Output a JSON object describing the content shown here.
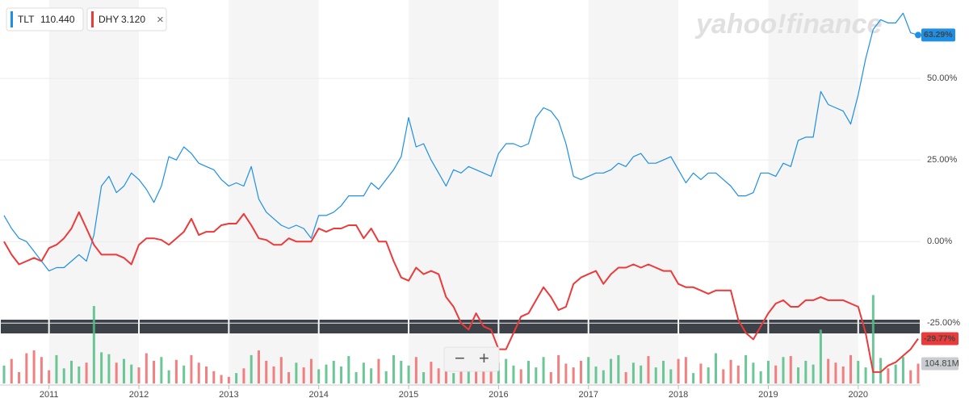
{
  "watermark": "yahoo!finance",
  "zoom": {
    "out": "−",
    "in": "+"
  },
  "legend_close": "×",
  "chart_data": {
    "type": "line",
    "categories": [
      null,
      null,
      null,
      null,
      null,
      null,
      "2011",
      null,
      null,
      null,
      null,
      null,
      null,
      null,
      null,
      null,
      null,
      null,
      "2012",
      null,
      null,
      null,
      null,
      null,
      null,
      null,
      null,
      null,
      null,
      null,
      "2013",
      null,
      null,
      null,
      null,
      null,
      null,
      null,
      null,
      null,
      null,
      null,
      "2014",
      null,
      null,
      null,
      null,
      null,
      null,
      null,
      null,
      null,
      null,
      null,
      "2015",
      null,
      null,
      null,
      null,
      null,
      null,
      null,
      null,
      null,
      null,
      null,
      "2016",
      null,
      null,
      null,
      null,
      null,
      null,
      null,
      null,
      null,
      null,
      null,
      "2017",
      null,
      null,
      null,
      null,
      null,
      null,
      null,
      null,
      null,
      null,
      null,
      "2018",
      null,
      null,
      null,
      null,
      null,
      null,
      null,
      null,
      null,
      null,
      null,
      "2019",
      null,
      null,
      null,
      null,
      null,
      null,
      null,
      null,
      null,
      null,
      null,
      "2020",
      null,
      null,
      null,
      null,
      null,
      null,
      null,
      null
    ],
    "ylim": [
      -43.5,
      72.8
    ],
    "yticks": [
      {
        "value": 50,
        "label": "50.00%"
      },
      {
        "value": 25,
        "label": "25.00%"
      },
      {
        "value": 0,
        "label": "0.00%"
      },
      {
        "value": -25,
        "label": "-25.00%"
      }
    ],
    "grid": true,
    "series": [
      {
        "name": "TLT",
        "quote": "110.440",
        "color": "#1e8fe6",
        "end_label": "63.29%",
        "values": [
          8,
          4,
          1,
          0,
          -3,
          -6,
          -9,
          -8,
          -8,
          -6,
          -4,
          -6,
          2,
          17,
          20,
          15,
          17,
          21,
          19,
          16,
          12,
          17,
          26,
          25,
          29,
          27,
          24,
          23,
          22,
          19,
          17,
          18,
          17,
          23,
          13,
          9,
          7,
          5,
          4,
          5,
          4,
          1,
          8,
          8,
          9,
          11,
          14,
          14,
          14,
          18,
          16,
          19,
          22,
          26,
          38,
          29,
          30,
          25,
          21,
          17,
          22,
          21,
          23,
          22,
          21,
          20,
          27,
          30,
          30,
          29,
          30,
          38,
          41,
          40,
          37,
          30,
          20,
          19,
          20,
          21,
          21,
          22,
          24,
          23,
          26,
          27,
          24,
          24,
          25,
          26,
          22,
          18,
          21,
          19,
          21,
          21,
          19,
          17,
          14,
          14,
          15,
          21,
          21,
          20,
          24,
          23,
          31,
          32,
          32,
          46,
          42,
          41,
          40,
          36,
          45,
          56,
          65,
          68,
          67,
          67,
          70,
          64,
          63.29
        ]
      },
      {
        "name": "DHY",
        "quote": "3.120",
        "color": "#ec3a3a",
        "end_label": "-29.77%",
        "values": [
          0,
          -4,
          -7,
          -6,
          -5,
          -6,
          -2,
          -1,
          1,
          4,
          9,
          4,
          -1,
          -4,
          -4,
          -4,
          -5,
          -7,
          -1,
          1,
          1,
          0.5,
          -1,
          1,
          3,
          7,
          2,
          3,
          3,
          5,
          5.5,
          5.5,
          8.5,
          5,
          1,
          0.5,
          -1,
          -1,
          1,
          0,
          0,
          0,
          4,
          3,
          4,
          4,
          5,
          5,
          1,
          4,
          0,
          0,
          -6,
          -11,
          -12,
          -8,
          -10,
          -9,
          -10,
          -17,
          -20,
          -25,
          -27,
          -22,
          -26,
          -27,
          -33,
          -33,
          -28,
          -23,
          -22,
          -18,
          -14,
          -17,
          -21,
          -20,
          -13,
          -11,
          -10,
          -9,
          -13,
          -10,
          -8,
          -8,
          -7,
          -8,
          -7,
          -8,
          -9,
          -9,
          -13,
          -14,
          -14,
          -15,
          -16,
          -15,
          -15,
          -15,
          -24,
          -28,
          -30,
          -26,
          -22,
          -19,
          -18,
          -20,
          -20,
          -18,
          -18,
          -17,
          -18,
          -18,
          -18,
          -19,
          -20,
          -28,
          -40,
          -40,
          -38,
          -37,
          -35,
          -33,
          -29.77
        ]
      }
    ],
    "volume": {
      "up_color": "#52bd85",
      "down_color": "#f06a6a",
      "lim": [
        0,
        500
      ],
      "last_label": "104.81M",
      "values": [
        95,
        130,
        60,
        160,
        175,
        140,
        70,
        150,
        80,
        120,
        90,
        110,
        410,
        165,
        155,
        110,
        130,
        100,
        85,
        160,
        120,
        140,
        70,
        125,
        95,
        150,
        110,
        90,
        65,
        45,
        35,
        55,
        80,
        150,
        175,
        120,
        90,
        140,
        60,
        110,
        85,
        130,
        75,
        100,
        120,
        90,
        145,
        60,
        110,
        80,
        130,
        65,
        150,
        120,
        95,
        140,
        60,
        115,
        80,
        125,
        55,
        170,
        140,
        100,
        150,
        65,
        110,
        130,
        95,
        75,
        120,
        85,
        140,
        60,
        150,
        105,
        85,
        120,
        140,
        90,
        70,
        130,
        150,
        60,
        110,
        95,
        145,
        85,
        120,
        75,
        130,
        140,
        55,
        105,
        85,
        160,
        75,
        125,
        95,
        150,
        110,
        65,
        120,
        95,
        140,
        145,
        85,
        120,
        100,
        285,
        130,
        110,
        90,
        150,
        120,
        85,
        468,
        135,
        80,
        100,
        140,
        70,
        104.81
      ]
    }
  }
}
